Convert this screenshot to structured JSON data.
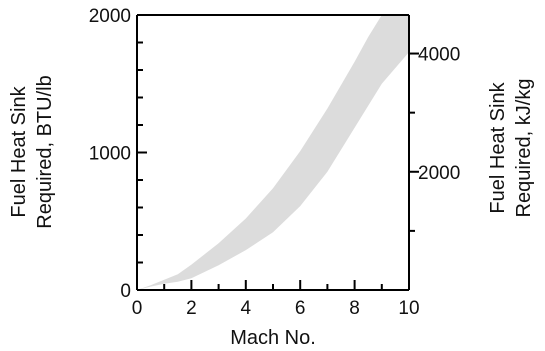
{
  "chart_data": {
    "type": "area",
    "title": "",
    "xlabel": "Mach No.",
    "ylabel_lines": [
      "Fuel Heat Sink",
      "Required, BTU/lb"
    ],
    "y2label_lines": [
      "Fuel Heat Sink",
      "Required, kJ/kg"
    ],
    "xlim": [
      0,
      10
    ],
    "ylim": [
      0,
      2000
    ],
    "y2lim": [
      0,
      4652
    ],
    "x_ticks": [
      "0",
      "2",
      "4",
      "6",
      "8",
      "10"
    ],
    "y_ticks": [
      "0",
      "1000",
      "2000"
    ],
    "y2_ticks": [
      "2000",
      "4000"
    ],
    "grid": false,
    "fill_color": "#dcdcdc",
    "band": {
      "x": [
        0,
        0.5,
        1,
        1.5,
        2,
        3,
        4,
        5,
        6,
        7,
        8,
        8.5,
        9,
        10
      ],
      "lower": [
        0,
        25,
        45,
        60,
        85,
        180,
        290,
        420,
        610,
        860,
        1180,
        1340,
        1500,
        1730
      ],
      "upper": [
        0,
        35,
        75,
        115,
        185,
        340,
        520,
        740,
        1010,
        1320,
        1660,
        1840,
        2000,
        2000
      ]
    }
  }
}
